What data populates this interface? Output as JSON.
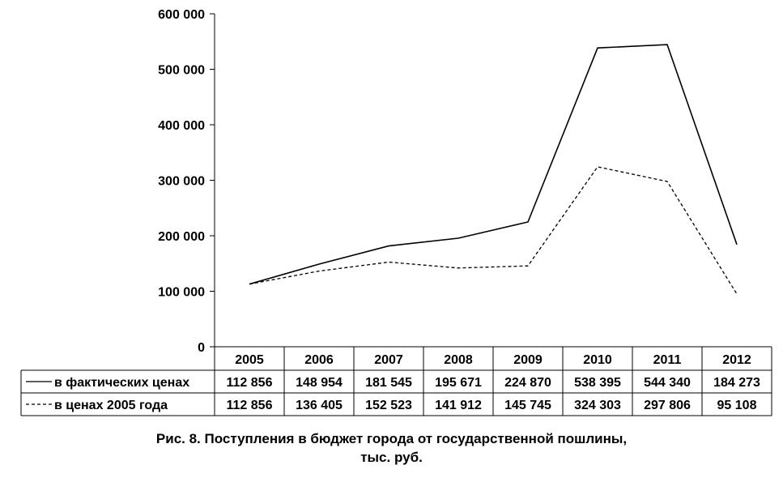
{
  "chart_data": {
    "type": "line",
    "categories": [
      "2005",
      "2006",
      "2007",
      "2008",
      "2009",
      "2010",
      "2011",
      "2012"
    ],
    "ylim": [
      0,
      600000
    ],
    "y_ticks": [
      "0",
      "100 000",
      "200 000",
      "300 000",
      "400 000",
      "500 000",
      "600 000"
    ],
    "grid": false,
    "legend": "data-table-below",
    "series": [
      {
        "name": "в фактических ценах",
        "style": "solid",
        "values": [
          112856,
          148954,
          181545,
          195671,
          224870,
          538395,
          544340,
          184273
        ],
        "labels": [
          "112 856",
          "148 954",
          "181 545",
          "195 671",
          "224 870",
          "538 395",
          "544 340",
          "184 273"
        ]
      },
      {
        "name": "в ценах 2005 года",
        "style": "dashed",
        "values": [
          112856,
          136405,
          152523,
          141912,
          145745,
          324303,
          297806,
          95108
        ],
        "labels": [
          "112 856",
          "136 405",
          "152 523",
          "141 912",
          "145 745",
          "324 303",
          "297 806",
          "95 108"
        ]
      }
    ]
  },
  "caption": {
    "line1": "Рис. 8. Поступления в бюджет города от государственной пошлины,",
    "line2": "тыс. руб."
  }
}
